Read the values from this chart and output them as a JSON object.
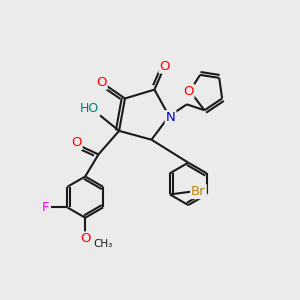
{
  "bg_color": "#ebebeb",
  "bond_color": "#1a1a1a",
  "bond_width": 1.5,
  "atom_colors": {
    "O": "#ff0000",
    "N": "#0000cc",
    "F": "#ff00ff",
    "Br": "#b8860b",
    "HO": "#008080"
  },
  "font_size": 9.5
}
